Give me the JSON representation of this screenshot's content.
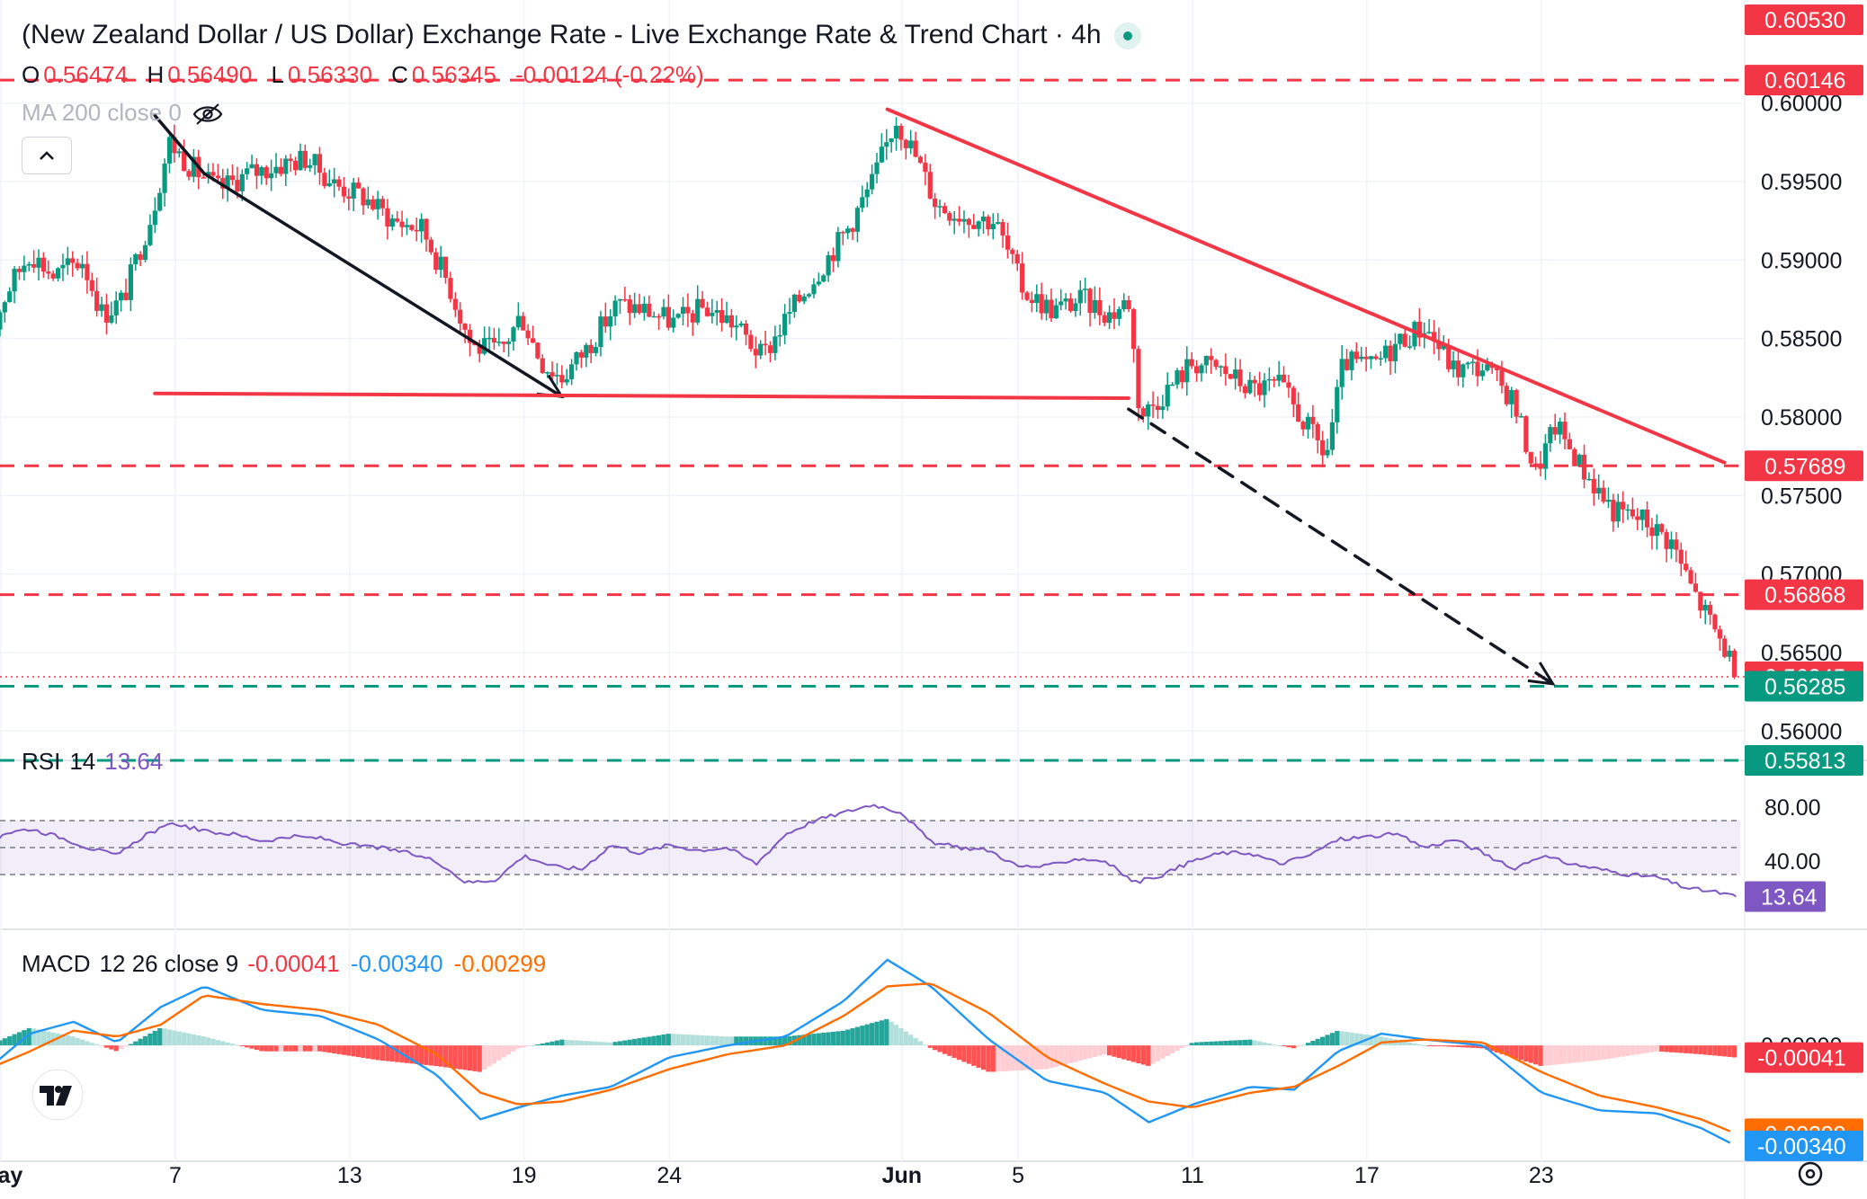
{
  "header": {
    "title": "(New Zealand Dollar / US Dollar) Exchange Rate - Live Exchange Rate & Trend Chart · 4h",
    "ohlc": [
      {
        "key": "O",
        "value": "0.56474"
      },
      {
        "key": "H",
        "value": "0.56490"
      },
      {
        "key": "L",
        "value": "0.56330"
      },
      {
        "key": "C",
        "value": "0.56345"
      }
    ],
    "change": "-0.00124 (-0.22%)",
    "ma_label": "MA 200 close 0",
    "collapse_icon": "chevron-up-icon",
    "visibility_icon": "eye-crossed-icon",
    "live_icon": "live-dot-icon"
  },
  "colors": {
    "up": "#089981",
    "down": "#f23645",
    "trend": "#f23645",
    "green_level": "#089981",
    "rsi": "#7e57c2",
    "macd_line": "#2196f3",
    "signal_line": "#ff6d00",
    "hist_up_strong": "#26a69a",
    "hist_up_weak": "#b2dfdb",
    "hist_down_strong": "#ff5252",
    "hist_down_weak": "#ffcdd2"
  },
  "chart_data": {
    "type": "candlestick",
    "symbol": "NZD/USD",
    "interval": "4h",
    "y_range": [
      0.5583,
      0.6053
    ],
    "y_ticks": [
      "0.60000",
      "0.59500",
      "0.59000",
      "0.58500",
      "0.58000",
      "0.57500",
      "0.57000",
      "0.56500",
      "0.56000"
    ],
    "x_ticks": [
      {
        "label": "May",
        "day": 1
      },
      {
        "label": "7",
        "day": 7
      },
      {
        "label": "13",
        "day": 13
      },
      {
        "label": "19",
        "day": 19
      },
      {
        "label": "24",
        "day": 24
      },
      {
        "label": "Jun",
        "day": 32
      },
      {
        "label": "5",
        "day": 36
      },
      {
        "label": "11",
        "day": 42
      },
      {
        "label": "17",
        "day": 48
      },
      {
        "label": "23",
        "day": 54
      }
    ],
    "price_labels": [
      {
        "value": "0.60530",
        "price": 0.6053,
        "color": "#f23645"
      },
      {
        "value": "0.60146",
        "price": 0.60146,
        "color": "#f23645"
      },
      {
        "value": "0.57689",
        "price": 0.57689,
        "color": "#f23645"
      },
      {
        "value": "0.56868",
        "price": 0.56868,
        "color": "#f23645"
      },
      {
        "value": "0.56345",
        "price": 0.56345,
        "color": "#f23645"
      },
      {
        "value": "0.56285",
        "price": 0.56285,
        "color": "#089981"
      },
      {
        "value": "0.55813",
        "price": 0.55813,
        "color": "#089981"
      }
    ],
    "horizontal_levels": [
      {
        "price": 0.60146,
        "color": "#f23645"
      },
      {
        "price": 0.57689,
        "color": "#f23645"
      },
      {
        "price": 0.56868,
        "color": "#f23645"
      },
      {
        "price": 0.56285,
        "color": "#089981"
      },
      {
        "price": 0.55813,
        "color": "#089981"
      }
    ],
    "current_price": 0.56345,
    "trendlines": [
      {
        "from": [
          6.3,
          0.5992
        ],
        "to": [
          8.0,
          0.5955
        ],
        "color": "#131722",
        "style": "solid",
        "arrow": false
      },
      {
        "from": [
          8.0,
          0.5955
        ],
        "to": [
          20.3,
          0.5813
        ],
        "color": "#131722",
        "style": "solid",
        "arrow": true
      },
      {
        "from": [
          6.3,
          0.5815
        ],
        "to": [
          39.8,
          0.5812
        ],
        "color": "#f23645",
        "style": "solid",
        "arrow": false
      },
      {
        "from": [
          31.5,
          0.5996
        ],
        "to": [
          60.3,
          0.5771
        ],
        "color": "#f23645",
        "style": "solid",
        "arrow": false
      },
      {
        "from": [
          39.8,
          0.5805
        ],
        "to": [
          54.4,
          0.563
        ],
        "color": "#131722",
        "style": "dashed",
        "arrow": true
      }
    ],
    "ohlc_anchors": [
      [
        0.3,
        0.5835
      ],
      [
        1.2,
        0.588
      ],
      [
        2.0,
        0.5905
      ],
      [
        2.8,
        0.589
      ],
      [
        3.8,
        0.59
      ],
      [
        4.5,
        0.5865
      ],
      [
        5.2,
        0.5875
      ],
      [
        6.2,
        0.593
      ],
      [
        6.8,
        0.5975
      ],
      [
        7.5,
        0.596
      ],
      [
        8.5,
        0.5945
      ],
      [
        9.5,
        0.5955
      ],
      [
        10.5,
        0.596
      ],
      [
        11.5,
        0.5965
      ],
      [
        12.5,
        0.5948
      ],
      [
        13.5,
        0.594
      ],
      [
        14.5,
        0.5925
      ],
      [
        15.5,
        0.592
      ],
      [
        16.4,
        0.5885
      ],
      [
        17.2,
        0.5845
      ],
      [
        18.2,
        0.5842
      ],
      [
        18.9,
        0.5865
      ],
      [
        19.6,
        0.5835
      ],
      [
        20.3,
        0.5825
      ],
      [
        21.2,
        0.5845
      ],
      [
        22.2,
        0.5872
      ],
      [
        23.2,
        0.5868
      ],
      [
        24.2,
        0.586
      ],
      [
        25.2,
        0.587
      ],
      [
        26.2,
        0.586
      ],
      [
        27.2,
        0.5838
      ],
      [
        28.2,
        0.5868
      ],
      [
        29.2,
        0.5895
      ],
      [
        30.2,
        0.5922
      ],
      [
        31.0,
        0.595
      ],
      [
        31.8,
        0.599
      ],
      [
        32.5,
        0.5965
      ],
      [
        33.2,
        0.5935
      ],
      [
        34.2,
        0.5928
      ],
      [
        35.2,
        0.5925
      ],
      [
        36.2,
        0.588
      ],
      [
        37.2,
        0.5868
      ],
      [
        38.2,
        0.5875
      ],
      [
        39.2,
        0.5865
      ],
      [
        39.8,
        0.5875
      ],
      [
        40.2,
        0.58
      ],
      [
        41.0,
        0.5815
      ],
      [
        42.0,
        0.5835
      ],
      [
        43.0,
        0.583
      ],
      [
        44.0,
        0.5818
      ],
      [
        45.0,
        0.582
      ],
      [
        46.0,
        0.5792
      ],
      [
        46.6,
        0.5775
      ],
      [
        47.2,
        0.5835
      ],
      [
        48.2,
        0.5832
      ],
      [
        49.2,
        0.585
      ],
      [
        50.0,
        0.5858
      ],
      [
        51.0,
        0.583
      ],
      [
        52.0,
        0.5832
      ],
      [
        53.0,
        0.5812
      ],
      [
        53.8,
        0.5765
      ],
      [
        54.5,
        0.5795
      ],
      [
        55.5,
        0.5765
      ],
      [
        56.5,
        0.574
      ],
      [
        57.5,
        0.5735
      ],
      [
        58.5,
        0.572
      ],
      [
        59.2,
        0.569
      ],
      [
        59.8,
        0.567
      ],
      [
        60.4,
        0.565
      ],
      [
        60.7,
        0.5635
      ]
    ]
  },
  "rsi": {
    "label": "RSI",
    "period": "14",
    "value": "13.64",
    "ticks": [
      "80.00",
      "40.00"
    ],
    "band": [
      30,
      70
    ],
    "midline": 50,
    "range": [
      0,
      100
    ],
    "anchors": [
      [
        0.3,
        36
      ],
      [
        1.0,
        60
      ],
      [
        2.0,
        64
      ],
      [
        3.0,
        58
      ],
      [
        4.0,
        50
      ],
      [
        5.0,
        44
      ],
      [
        6.0,
        60
      ],
      [
        7.0,
        68
      ],
      [
        8.0,
        62
      ],
      [
        9.0,
        60
      ],
      [
        10.0,
        55
      ],
      [
        11.0,
        58
      ],
      [
        12.0,
        57
      ],
      [
        13.0,
        52
      ],
      [
        14.0,
        50
      ],
      [
        15.0,
        46
      ],
      [
        16.0,
        40
      ],
      [
        17.0,
        24
      ],
      [
        18.0,
        26
      ],
      [
        19.0,
        44
      ],
      [
        20.0,
        36
      ],
      [
        21.0,
        34
      ],
      [
        22.0,
        52
      ],
      [
        23.0,
        46
      ],
      [
        24.0,
        52
      ],
      [
        25.0,
        48
      ],
      [
        26.0,
        50
      ],
      [
        27.0,
        38
      ],
      [
        28.0,
        60
      ],
      [
        29.0,
        70
      ],
      [
        30.0,
        76
      ],
      [
        31.0,
        82
      ],
      [
        32.0,
        76
      ],
      [
        33.0,
        54
      ],
      [
        34.0,
        50
      ],
      [
        35.0,
        48
      ],
      [
        36.0,
        36
      ],
      [
        37.0,
        36
      ],
      [
        38.0,
        42
      ],
      [
        39.0,
        40
      ],
      [
        40.0,
        24
      ],
      [
        41.0,
        30
      ],
      [
        42.0,
        40
      ],
      [
        43.0,
        46
      ],
      [
        44.0,
        46
      ],
      [
        45.0,
        38
      ],
      [
        46.0,
        44
      ],
      [
        47.0,
        56
      ],
      [
        48.0,
        58
      ],
      [
        49.0,
        60
      ],
      [
        50.0,
        50
      ],
      [
        51.0,
        56
      ],
      [
        52.0,
        46
      ],
      [
        53.0,
        34
      ],
      [
        54.0,
        44
      ],
      [
        55.0,
        38
      ],
      [
        56.0,
        34
      ],
      [
        57.0,
        30
      ],
      [
        58.0,
        28
      ],
      [
        59.0,
        20
      ],
      [
        60.0,
        17
      ],
      [
        60.7,
        13.64
      ]
    ]
  },
  "macd": {
    "label": "MACD",
    "params": "12 26 close 9",
    "histogram_value": "-0.00041",
    "macd_value": "-0.00340",
    "signal_value": "-0.00299",
    "ticks": [
      "0.00000"
    ],
    "axis_labels": [
      {
        "value": "-0.00041",
        "at": -0.00041,
        "color": "#f23645"
      },
      {
        "value": "-0.00299",
        "at": -0.00299,
        "color": "#ff6d00"
      },
      {
        "value": "-0.00340",
        "at": -0.0034,
        "color": "#2196f3"
      }
    ],
    "range": [
      -0.0038,
      0.0032
    ],
    "macd_anchors": [
      [
        0.3,
        -0.001
      ],
      [
        2.0,
        0.0004
      ],
      [
        3.5,
        0.0008
      ],
      [
        5.0,
        0.0001
      ],
      [
        6.5,
        0.0013
      ],
      [
        8.0,
        0.002
      ],
      [
        10.0,
        0.0012
      ],
      [
        12.0,
        0.001
      ],
      [
        14.0,
        0.0002
      ],
      [
        16.0,
        -0.001
      ],
      [
        17.5,
        -0.0025
      ],
      [
        18.8,
        -0.0021
      ],
      [
        20.3,
        -0.0017
      ],
      [
        22.0,
        -0.0014
      ],
      [
        24.0,
        -0.0004
      ],
      [
        26.0,
        0.0
      ],
      [
        28.0,
        0.0003
      ],
      [
        30.0,
        0.0015
      ],
      [
        31.5,
        0.0029
      ],
      [
        33.0,
        0.002
      ],
      [
        35.0,
        0.0002
      ],
      [
        37.0,
        -0.0012
      ],
      [
        39.0,
        -0.0016
      ],
      [
        40.5,
        -0.0026
      ],
      [
        42.0,
        -0.002
      ],
      [
        44.0,
        -0.0014
      ],
      [
        45.5,
        -0.0015
      ],
      [
        47.0,
        -0.0002
      ],
      [
        48.5,
        0.0004
      ],
      [
        50.0,
        0.0002
      ],
      [
        52.0,
        0.0
      ],
      [
        54.0,
        -0.0016
      ],
      [
        56.0,
        -0.0022
      ],
      [
        58.0,
        -0.0023
      ],
      [
        59.5,
        -0.0028
      ],
      [
        60.7,
        -0.0034
      ]
    ],
    "signal_anchors": [
      [
        0.3,
        -0.0009
      ],
      [
        2.0,
        -0.0002
      ],
      [
        3.5,
        0.0005
      ],
      [
        5.0,
        0.0003
      ],
      [
        6.5,
        0.0007
      ],
      [
        8.0,
        0.0017
      ],
      [
        10.0,
        0.0014
      ],
      [
        12.0,
        0.0012
      ],
      [
        14.0,
        0.0007
      ],
      [
        16.0,
        -0.0003
      ],
      [
        17.5,
        -0.0016
      ],
      [
        18.8,
        -0.002
      ],
      [
        20.3,
        -0.0019
      ],
      [
        22.0,
        -0.0015
      ],
      [
        24.0,
        -0.0008
      ],
      [
        26.0,
        -0.0003
      ],
      [
        28.0,
        0.0
      ],
      [
        30.0,
        0.001
      ],
      [
        31.5,
        0.002
      ],
      [
        33.0,
        0.0021
      ],
      [
        35.0,
        0.0011
      ],
      [
        37.0,
        -0.0004
      ],
      [
        39.0,
        -0.0013
      ],
      [
        40.5,
        -0.0019
      ],
      [
        42.0,
        -0.0021
      ],
      [
        44.0,
        -0.0016
      ],
      [
        45.5,
        -0.0014
      ],
      [
        47.0,
        -0.0007
      ],
      [
        48.5,
        0.0001
      ],
      [
        50.0,
        0.0002
      ],
      [
        52.0,
        0.0001
      ],
      [
        54.0,
        -0.0009
      ],
      [
        56.0,
        -0.0017
      ],
      [
        58.0,
        -0.0021
      ],
      [
        59.5,
        -0.0025
      ],
      [
        60.7,
        -0.00299
      ]
    ]
  },
  "footer": {
    "logo_icon": "tradingview-logo-icon",
    "settings_icon": "gear-icon"
  }
}
